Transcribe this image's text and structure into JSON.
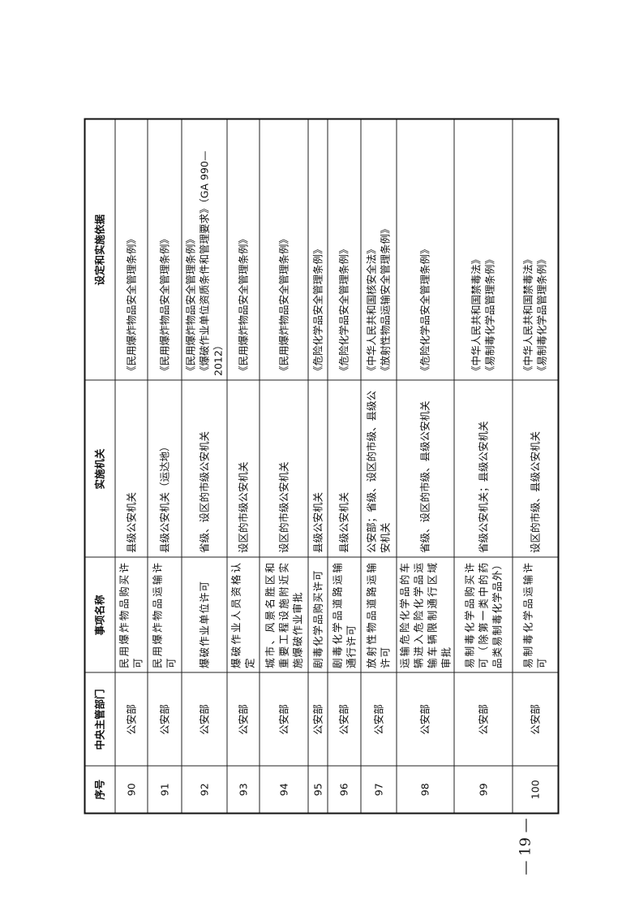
{
  "table": {
    "headers": [
      "序号",
      "中央主管部门",
      "事项名称",
      "实施机关",
      "设定和实施依据"
    ],
    "rows": [
      {
        "no": "90",
        "dept": "公安部",
        "item": "民用爆炸物品购买许可",
        "authority": "县级公安机关",
        "basis": [
          "《民用爆炸物品安全管理条例》"
        ]
      },
      {
        "no": "91",
        "dept": "公安部",
        "item": "民用爆炸物品运输许可",
        "authority": "县级公安机关（运达地）",
        "basis": [
          "《民用爆炸物品安全管理条例》"
        ]
      },
      {
        "no": "92",
        "dept": "公安部",
        "item": "爆破作业单位许可",
        "authority": "省级、设区的市级公安机关",
        "basis": [
          "《民用爆炸物品安全管理条例》",
          "《爆破作业单位资质条件和管理要求》（GA 990—2012）"
        ]
      },
      {
        "no": "93",
        "dept": "公安部",
        "item": "爆破作业人员资格认定",
        "authority": "设区的市级公安机关",
        "basis": [
          "《民用爆炸物品安全管理条例》"
        ]
      },
      {
        "no": "94",
        "dept": "公安部",
        "item": "城市、风景名胜区和重要工程设施附近实施爆破作业审批",
        "authority": "设区的市级公安机关",
        "basis": [
          "《民用爆炸物品安全管理条例》"
        ]
      },
      {
        "no": "95",
        "dept": "公安部",
        "item": "剧毒化学品购买许可",
        "authority": "县级公安机关",
        "basis": [
          "《危险化学品安全管理条例》"
        ]
      },
      {
        "no": "96",
        "dept": "公安部",
        "item": "剧毒化学品道路运输通行许可",
        "authority": "县级公安机关",
        "basis": [
          "《危险化学品安全管理条例》"
        ]
      },
      {
        "no": "97",
        "dept": "公安部",
        "item": "放射性物品道路运输许可",
        "authority": "公安部；省级、设区的市级、县级公安机关",
        "basis": [
          "《中华人民共和国核安全法》",
          "《放射性物品运输安全管理条例》"
        ]
      },
      {
        "no": "98",
        "dept": "公安部",
        "item": "运输危险化学品的车辆进入危险化学品运输车辆限制通行区域审批",
        "authority": "省级、设区的市级、县级公安机关",
        "basis": [
          "《危险化学品安全管理条例》"
        ]
      },
      {
        "no": "99",
        "dept": "公安部",
        "item": "易制毒化学品购买许可（除第一类中的药品类易制毒化学品外）",
        "authority": "省级公安机关；县级公安机关",
        "basis": [
          "《中华人民共和国禁毒法》",
          "《易制毒化学品管理条例》"
        ]
      },
      {
        "no": "100",
        "dept": "公安部",
        "item": "易制毒化学品运输许可",
        "authority": "设区的市级、县级公安机关",
        "basis": [
          "《中华人民共和国禁毒法》",
          "《易制毒化学品管理条例》"
        ]
      }
    ]
  },
  "page_number": "— 19 —"
}
